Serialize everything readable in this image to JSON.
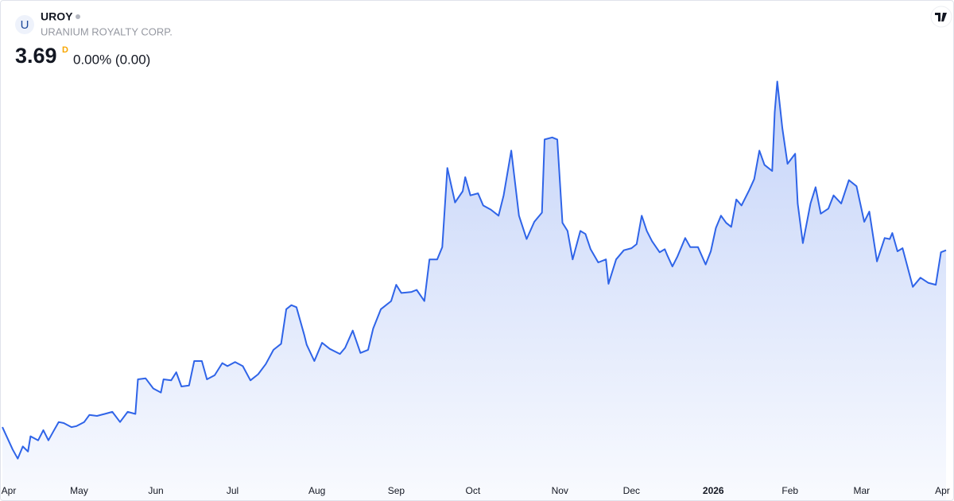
{
  "header": {
    "logo": "U",
    "symbol": "UROY",
    "name": "URANIUM ROYALTY CORP.",
    "price": 3.69,
    "interval": "D",
    "change": "0.00% (0.00)"
  },
  "chart_data": {
    "type": "area",
    "color": "#2f64e8",
    "x": [
      -3,
      1,
      3,
      5,
      7,
      8,
      11,
      13,
      15,
      17,
      19,
      21,
      24,
      26,
      29,
      31,
      34,
      37,
      40,
      43,
      46,
      49,
      50,
      53,
      56,
      59,
      60,
      63,
      65,
      67,
      70,
      72,
      75,
      77,
      80,
      83,
      85,
      88,
      91,
      94,
      97,
      100,
      103,
      106,
      108,
      110,
      112,
      115,
      116,
      119,
      122,
      125,
      129,
      131,
      134,
      137,
      140,
      142,
      145,
      149,
      151,
      153,
      157,
      159,
      162,
      164,
      167,
      169,
      171,
      174,
      177,
      178,
      180,
      183,
      185,
      188,
      191,
      193,
      196,
      199,
      202,
      205,
      208,
      209,
      212,
      214,
      216,
      218,
      220,
      223,
      225,
      227,
      230,
      233,
      234,
      237,
      240,
      243,
      245,
      247,
      249,
      251,
      254,
      256,
      257,
      259,
      261,
      264,
      266,
      269,
      272,
      274,
      276,
      278,
      280,
      282,
      284,
      286,
      289,
      291,
      293,
      295,
      298,
      299,
      300,
      302,
      304,
      307,
      308,
      310,
      313,
      315,
      317,
      320,
      322,
      325,
      328,
      331,
      334,
      336,
      339,
      342,
      344,
      345,
      347,
      349,
      353,
      356,
      359,
      362,
      364,
      366
    ],
    "values": [
      1.95,
      1.73,
      1.64,
      1.76,
      1.71,
      1.86,
      1.82,
      1.92,
      1.82,
      1.91,
      2.0,
      1.99,
      1.95,
      1.96,
      2.0,
      2.07,
      2.06,
      2.08,
      2.1,
      2.0,
      2.1,
      2.08,
      2.42,
      2.43,
      2.33,
      2.29,
      2.42,
      2.41,
      2.49,
      2.35,
      2.36,
      2.6,
      2.6,
      2.42,
      2.46,
      2.58,
      2.55,
      2.59,
      2.55,
      2.41,
      2.47,
      2.57,
      2.71,
      2.77,
      3.11,
      3.15,
      3.13,
      2.86,
      2.76,
      2.6,
      2.78,
      2.72,
      2.67,
      2.73,
      2.9,
      2.68,
      2.71,
      2.92,
      3.11,
      3.19,
      3.35,
      3.27,
      3.28,
      3.3,
      3.19,
      3.6,
      3.6,
      3.72,
      4.5,
      4.16,
      4.27,
      4.41,
      4.23,
      4.25,
      4.13,
      4.09,
      4.03,
      4.23,
      4.67,
      4.03,
      3.8,
      3.97,
      4.06,
      4.78,
      4.8,
      4.78,
      3.96,
      3.88,
      3.6,
      3.88,
      3.85,
      3.7,
      3.57,
      3.6,
      3.36,
      3.6,
      3.69,
      3.71,
      3.75,
      4.03,
      3.88,
      3.78,
      3.67,
      3.7,
      3.64,
      3.53,
      3.63,
      3.81,
      3.72,
      3.72,
      3.55,
      3.68,
      3.91,
      4.03,
      3.96,
      3.92,
      4.19,
      4.13,
      4.28,
      4.39,
      4.67,
      4.53,
      4.47,
      5.05,
      5.35,
      4.89,
      4.54,
      4.64,
      4.15,
      3.76,
      4.15,
      4.31,
      4.05,
      4.1,
      4.23,
      4.15,
      4.38,
      4.32,
      3.97,
      4.07,
      3.58,
      3.81,
      3.8,
      3.86,
      3.68,
      3.71,
      3.33,
      3.42,
      3.37,
      3.35,
      3.67,
      3.69
    ],
    "xlim": [
      -3,
      366
    ],
    "ylim": [
      1.45,
      5.44
    ],
    "xticks": [
      {
        "value": 0,
        "label": "Apr"
      },
      {
        "value": 27,
        "label": "May"
      },
      {
        "value": 57,
        "label": "Jun"
      },
      {
        "value": 87,
        "label": "Jul"
      },
      {
        "value": 120,
        "label": "Aug"
      },
      {
        "value": 151,
        "label": "Sep"
      },
      {
        "value": 181,
        "label": "Oct"
      },
      {
        "value": 215,
        "label": "Nov"
      },
      {
        "value": 243,
        "label": "Dec"
      },
      {
        "value": 275,
        "label": "2026"
      },
      {
        "value": 305,
        "label": "Feb"
      },
      {
        "value": 333,
        "label": "Mar"
      },
      {
        "value": 365,
        "label": "Apr"
      }
    ]
  }
}
